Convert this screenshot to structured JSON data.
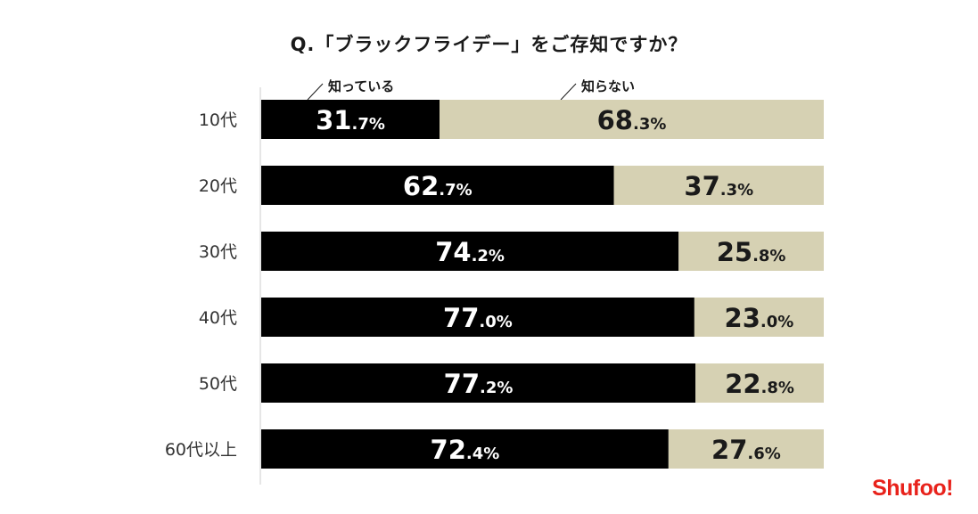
{
  "title": "Q.「ブラックフライデー」をご存知ですか？",
  "brand": "Shufoo!",
  "colors": {
    "known": "#000000",
    "unknown": "#d6d1b3",
    "axis": "#cccccc",
    "brand": "#e8221b"
  },
  "chart_data": {
    "type": "bar",
    "orientation": "horizontal",
    "stacked": true,
    "percent": true,
    "title": "Q.「ブラックフライデー」をご存知ですか？",
    "categories": [
      "10代",
      "20代",
      "30代",
      "40代",
      "50代",
      "60代以上"
    ],
    "series": [
      {
        "name": "知っている",
        "values": [
          31.7,
          62.7,
          74.2,
          77.0,
          77.2,
          72.4
        ]
      },
      {
        "name": "知らない",
        "values": [
          68.3,
          37.3,
          25.8,
          23.0,
          22.8,
          27.6
        ]
      }
    ],
    "value_labels": [
      [
        "31.7%",
        "62.7%",
        "74.2%",
        "77.0%",
        "77.2%",
        "72.4%"
      ],
      [
        "68.3%",
        "37.3%",
        "25.8%",
        "23.0%",
        "22.8%",
        "27.6%"
      ]
    ],
    "xlim": [
      0,
      100
    ],
    "legend": "top",
    "grid": false
  }
}
